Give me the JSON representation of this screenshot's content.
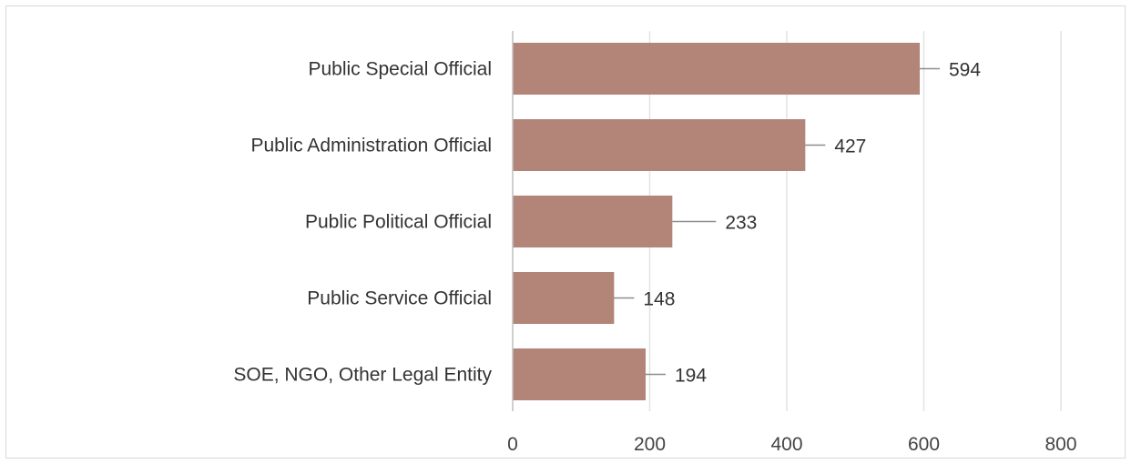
{
  "chart_data": {
    "type": "bar",
    "orientation": "horizontal",
    "title": "",
    "xlabel": "",
    "ylabel": "",
    "categories": [
      "Public Special Official",
      "Public Administration Official",
      "Public Political Official",
      "Public Service Official",
      "SOE, NGO, Other Legal Entity"
    ],
    "values": [
      594,
      427,
      233,
      148,
      194
    ],
    "xlim": [
      0,
      800
    ],
    "xticks": [
      0,
      200,
      400,
      600,
      800
    ],
    "grid": true,
    "data_labels": true,
    "colors": {
      "bar": "#b38579",
      "grid": "#e3e3e3",
      "axis": "#bfbfbf",
      "leader": "#8c8c8c"
    }
  }
}
